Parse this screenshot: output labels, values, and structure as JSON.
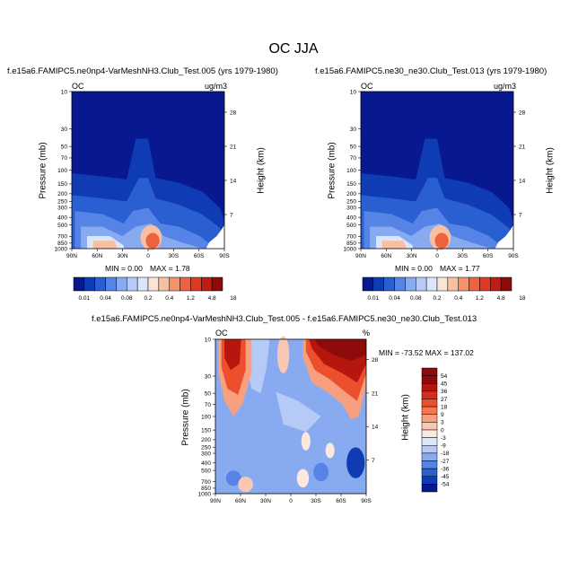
{
  "figure": {
    "title": "OC JJA"
  },
  "chart_data": [
    {
      "type": "heatmap",
      "title": "f.e15a6.FAMIPC5.ne0np4-VarMeshNH3.Club_Test.005 (yrs 1979-1980)",
      "variable": "OC",
      "units": "ug/m3",
      "ylabel": "Pressure (mb)",
      "y2label": "Height (km)",
      "x_ticks": [
        "90N",
        "60N",
        "30N",
        "0",
        "30S",
        "60S",
        "90S"
      ],
      "y_ticks": [
        "10",
        "30",
        "50",
        "70",
        "100",
        "150",
        "200",
        "250",
        "300",
        "400",
        "500",
        "700",
        "850",
        "1000"
      ],
      "y2_ticks": [
        "28",
        "21",
        "14",
        "7"
      ],
      "min_label": "MIN =   0.00",
      "max_label": "MAX =   1.78",
      "min": 0.0,
      "max": 1.78
    },
    {
      "type": "heatmap",
      "title": "f.e15a6.FAMIPC5.ne30_ne30.Club_Test.013 (yrs 1979-1980)",
      "variable": "OC",
      "units": "ug/m3",
      "ylabel": "Pressure (mb)",
      "y2label": "Height (km)",
      "x_ticks": [
        "90N",
        "60N",
        "30N",
        "0",
        "30S",
        "60S",
        "90S"
      ],
      "y_ticks": [
        "10",
        "30",
        "50",
        "70",
        "100",
        "150",
        "200",
        "250",
        "300",
        "400",
        "500",
        "700",
        "850",
        "1000"
      ],
      "y2_ticks": [
        "28",
        "21",
        "14",
        "7"
      ],
      "min_label": "MIN =   0.00",
      "max_label": "MAX =   1.77",
      "min": 0.0,
      "max": 1.77
    },
    {
      "type": "heatmap",
      "title": "f.e15a6.FAMIPC5.ne0np4-VarMeshNH3.Club_Test.005 - f.e15a6.FAMIPC5.ne30_ne30.Club_Test.013",
      "variable": "OC",
      "units": "%",
      "ylabel": "Pressure (mb)",
      "y2label": "Height (km)",
      "x_ticks": [
        "90N",
        "60N",
        "30N",
        "0",
        "30S",
        "60S",
        "90S"
      ],
      "y_ticks": [
        "10",
        "30",
        "50",
        "70",
        "100",
        "150",
        "200",
        "250",
        "300",
        "400",
        "500",
        "700",
        "850",
        "1000"
      ],
      "y2_ticks": [
        "28",
        "21",
        "14",
        "7"
      ],
      "minmax_label": "MIN = -73.52   MAX = 137.02",
      "min": -73.52,
      "max": 137.02
    }
  ],
  "colorbar_top": {
    "labels": [
      "0.01",
      "0.04",
      "0.08",
      "0.2",
      "0.4",
      "1.2",
      "4.8",
      "18"
    ],
    "colors": [
      "#08188e",
      "#0f3cb4",
      "#2a5fd2",
      "#5584e6",
      "#88aaf0",
      "#b6caf7",
      "#dce6fb",
      "#fbe3d5",
      "#f8c0a0",
      "#f4926a",
      "#ee6240",
      "#de3a22",
      "#bd1d14",
      "#8e0b0b"
    ]
  },
  "colorbar_diff": {
    "labels": [
      "54",
      "45",
      "36",
      "27",
      "18",
      "9",
      "3",
      "0",
      "-3",
      "-9",
      "-18",
      "-27",
      "-36",
      "-45",
      "-54"
    ],
    "colors": [
      "#8e0b0b",
      "#b5170f",
      "#d72e1c",
      "#ec4e2e",
      "#f47752",
      "#f7a07f",
      "#fac8b2",
      "#fbe8de",
      "#dce6fb",
      "#b6caf7",
      "#88aaf0",
      "#5584e6",
      "#2a5fd2",
      "#0f3cb4",
      "#08188e"
    ]
  }
}
